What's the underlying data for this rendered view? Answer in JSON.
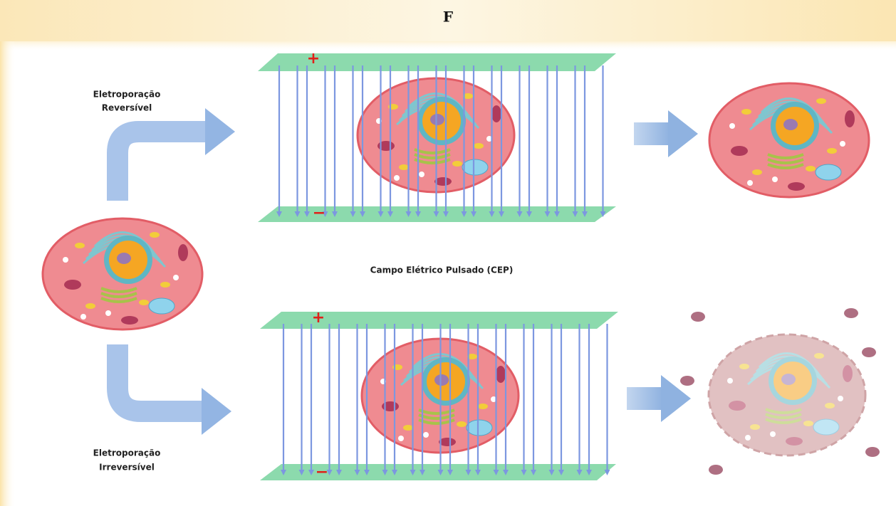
{
  "header": {
    "title": "F"
  },
  "labels": {
    "reversible": [
      "Eletroporação",
      "Reversível"
    ],
    "field": "Campo Elétrico Pulsado (CEP)",
    "irreversible": [
      "Eletroporação",
      "Irreversível"
    ]
  },
  "plates": {
    "positive": "+",
    "negative": "−"
  }
}
